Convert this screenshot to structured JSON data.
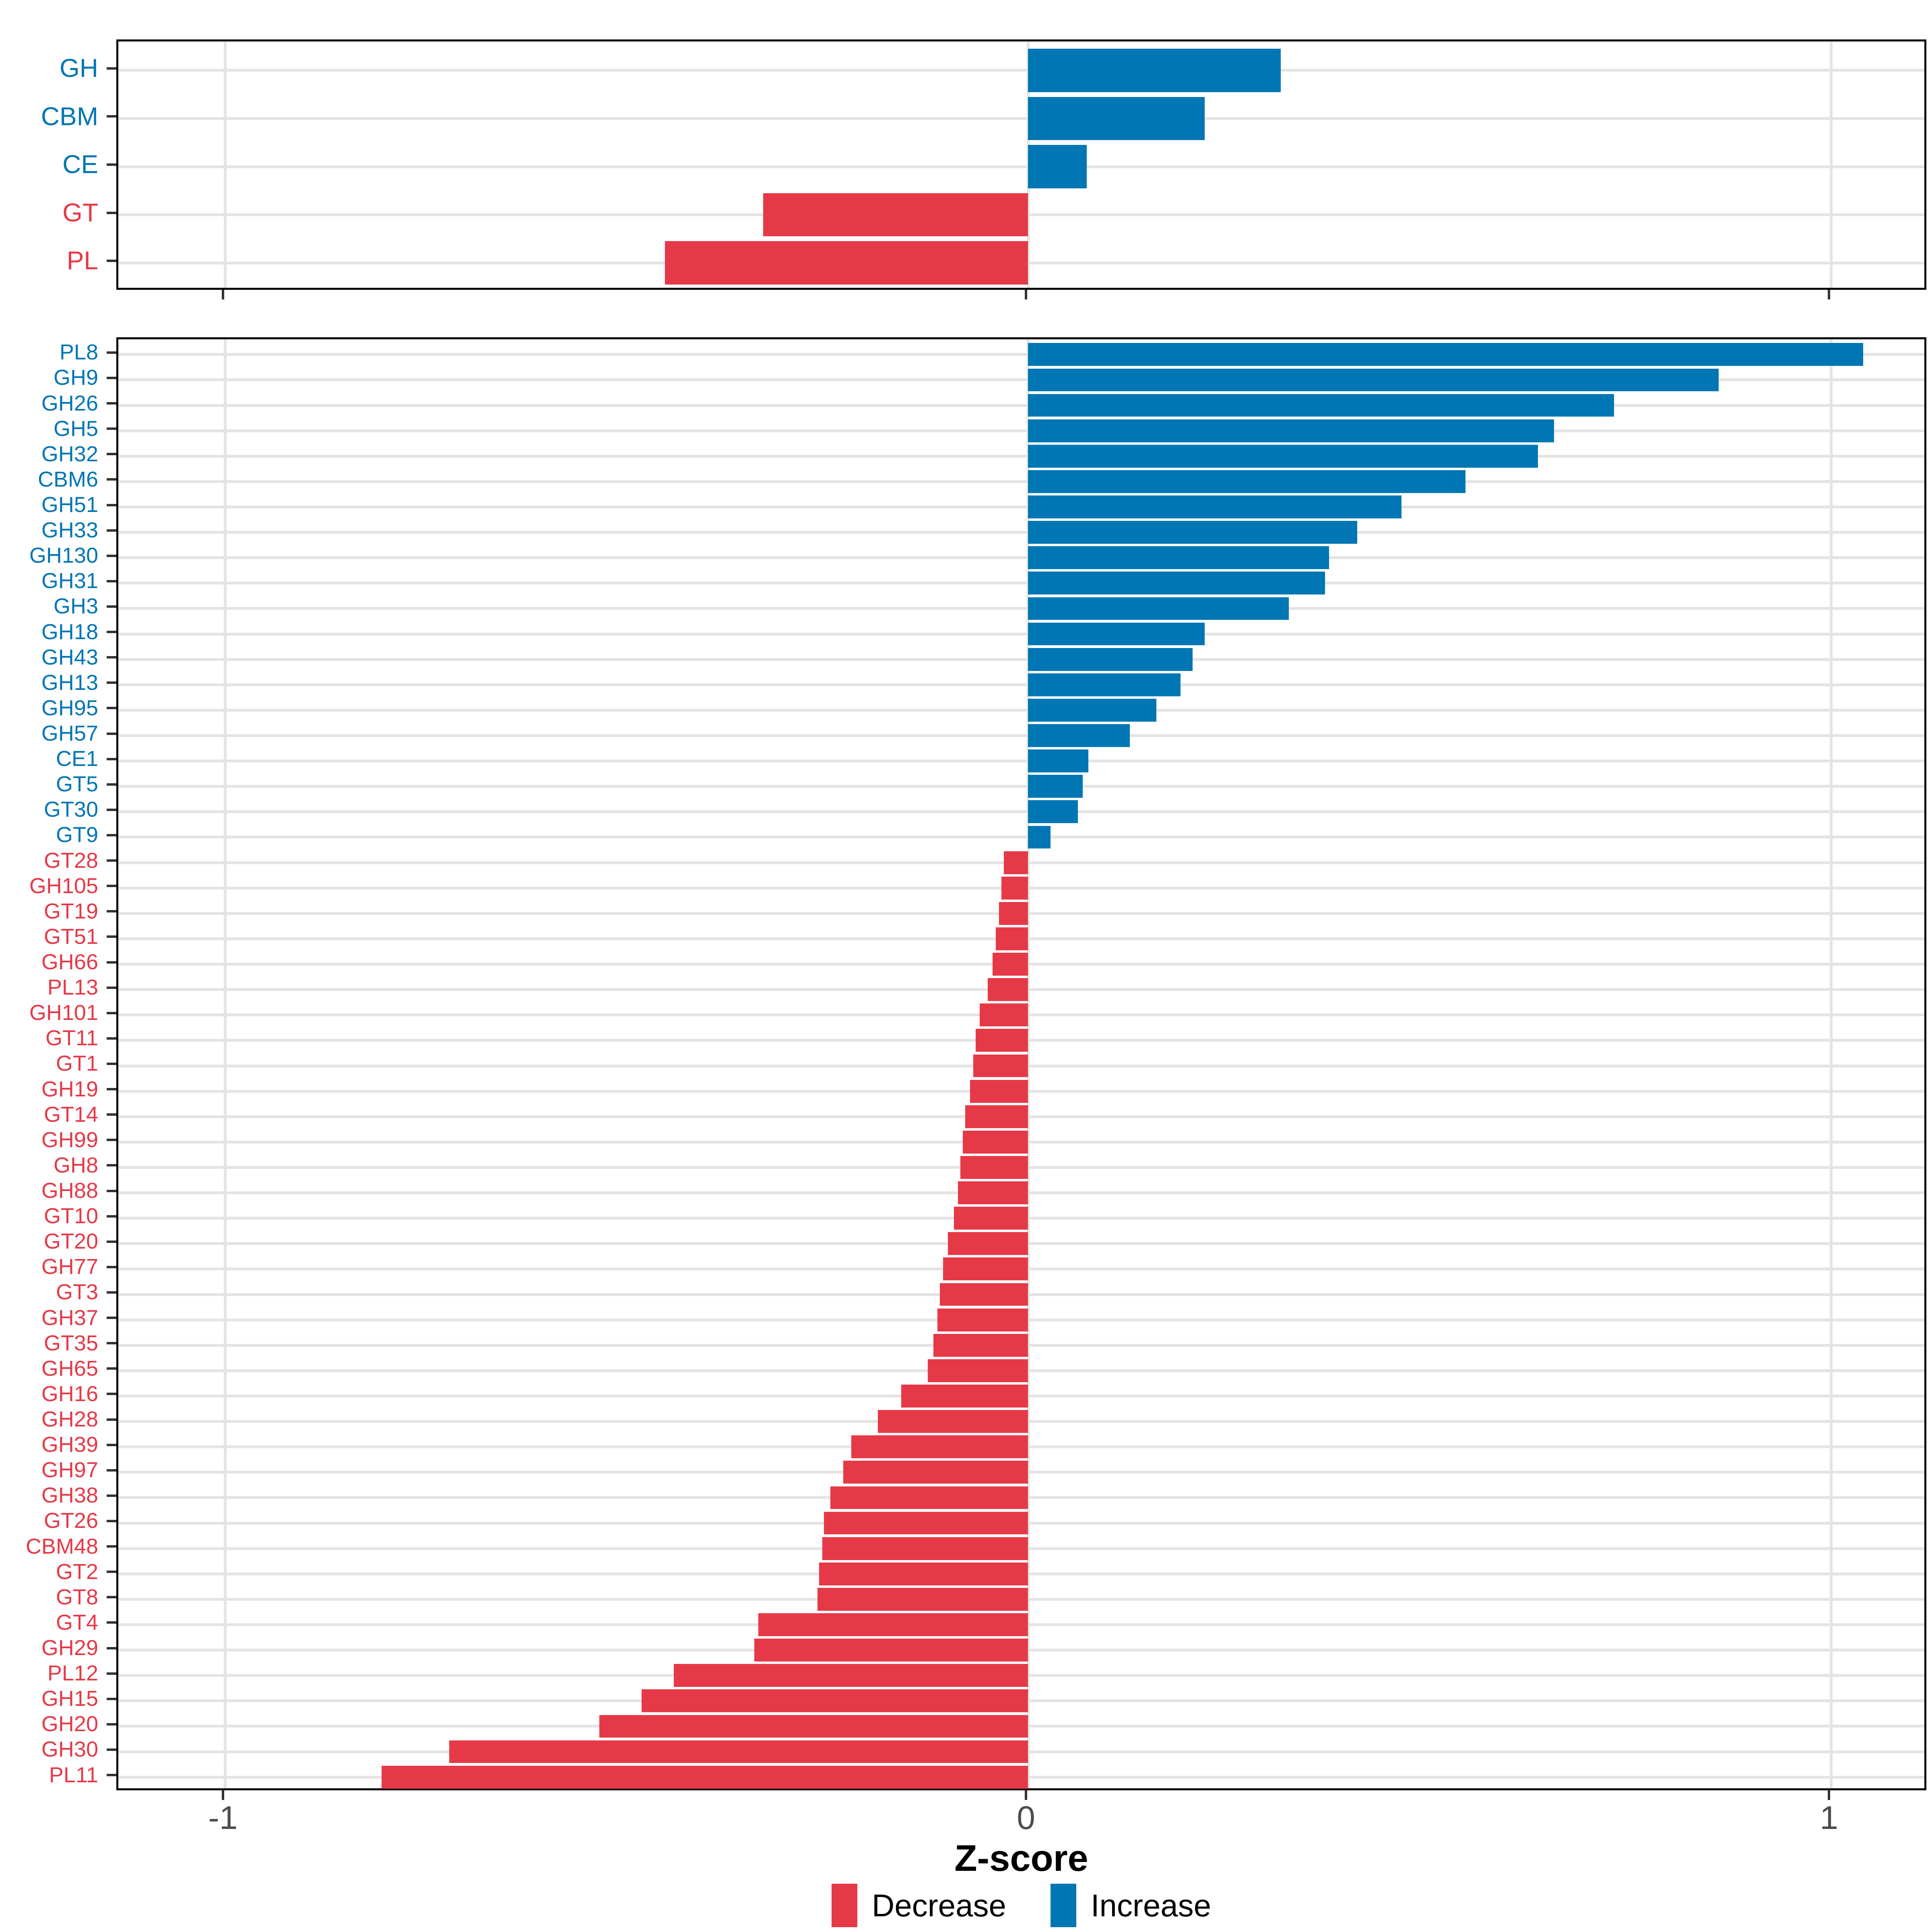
{
  "figure": {
    "background": "#FFFFFF"
  },
  "axis": {
    "label": "Z-score",
    "ticks": [
      {
        "value": -1,
        "label": "-1"
      },
      {
        "value": 0,
        "label": "0"
      },
      {
        "value": 1,
        "label": "1"
      }
    ]
  },
  "legend": {
    "items": [
      {
        "label": "Decrease",
        "color": "#E63947"
      },
      {
        "label": "Increase",
        "color": "#0076B4"
      }
    ]
  },
  "colors": {
    "increase": "#0076B4",
    "decrease": "#E63947",
    "grid": "#E4E4E4",
    "tick_label": "#4D4D4D",
    "panel_border": "#000000"
  },
  "chart_data": {
    "type": "bar",
    "orientation": "horizontal",
    "xlabel": "Z-score",
    "xlim": [
      -1.13,
      1.12
    ],
    "x_ticks": [
      -1,
      0,
      1
    ],
    "grid": "major",
    "legend_position": "bottom",
    "panels": [
      {
        "name": "cazyme-classes",
        "categories": [
          "GH",
          "CBM",
          "CE",
          "GT",
          "PL"
        ],
        "values": [
          0.315,
          0.22,
          0.073,
          -0.33,
          -0.452
        ]
      },
      {
        "name": "cazyme-families",
        "categories": [
          "PL8",
          "GH9",
          "GH26",
          "GH5",
          "GH32",
          "CBM6",
          "GH51",
          "GH33",
          "GH130",
          "GH31",
          "GH3",
          "GH18",
          "GH43",
          "GH13",
          "GH95",
          "GH57",
          "CE1",
          "GT5",
          "GT30",
          "GT9",
          "GT28",
          "GH105",
          "GT19",
          "GT51",
          "GH66",
          "PL13",
          "GH101",
          "GT11",
          "GT1",
          "GH19",
          "GT14",
          "GH99",
          "GH8",
          "GH88",
          "GT10",
          "GT20",
          "GH77",
          "GT3",
          "GH37",
          "GT35",
          "GH65",
          "GH16",
          "GH28",
          "GH39",
          "GH97",
          "GH38",
          "GT26",
          "CBM48",
          "GT2",
          "GT8",
          "GT4",
          "GH29",
          "PL12",
          "GH15",
          "GH20",
          "GH30",
          "PL11"
        ],
        "values": [
          1.04,
          0.86,
          0.73,
          0.655,
          0.635,
          0.545,
          0.465,
          0.41,
          0.375,
          0.37,
          0.325,
          0.22,
          0.205,
          0.19,
          0.16,
          0.127,
          0.075,
          0.068,
          0.062,
          0.028,
          -0.03,
          -0.033,
          -0.036,
          -0.04,
          -0.044,
          -0.05,
          -0.06,
          -0.065,
          -0.068,
          -0.072,
          -0.078,
          -0.081,
          -0.084,
          -0.087,
          -0.092,
          -0.1,
          -0.106,
          -0.11,
          -0.113,
          -0.118,
          -0.125,
          -0.158,
          -0.187,
          -0.22,
          -0.23,
          -0.246,
          -0.254,
          -0.256,
          -0.26,
          -0.262,
          -0.336,
          -0.341,
          -0.441,
          -0.481,
          -0.534,
          -0.721,
          -0.805
        ]
      }
    ]
  }
}
